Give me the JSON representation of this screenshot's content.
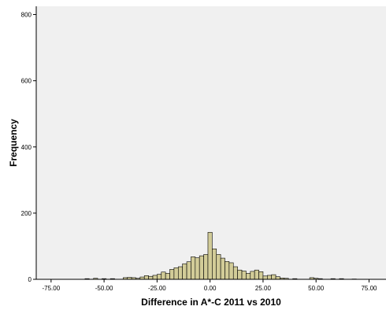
{
  "chart_data": {
    "type": "bar",
    "title": "",
    "xlabel": "Difference in A*-C 2011 vs 2010",
    "ylabel": "Frequency",
    "xlim": [
      -82,
      83
    ],
    "ylim": [
      0,
      825
    ],
    "x_ticks": [
      -75,
      -50,
      -25,
      0,
      25,
      50,
      75
    ],
    "x_tick_labels": [
      "-75.00",
      "-50.00",
      "-25.00",
      "0.00",
      "25.00",
      "50.00",
      "75.00"
    ],
    "y_ticks": [
      0,
      200,
      400,
      600,
      800
    ],
    "y_tick_labels": [
      "0",
      "200",
      "400",
      "600",
      "800"
    ],
    "bin_width": 2,
    "bins": [
      {
        "x": -58,
        "value": 2
      },
      {
        "x": -54,
        "value": 3
      },
      {
        "x": -50,
        "value": 2
      },
      {
        "x": -46,
        "value": 2
      },
      {
        "x": -40,
        "value": 5
      },
      {
        "x": -38,
        "value": 6
      },
      {
        "x": -36,
        "value": 5
      },
      {
        "x": -34,
        "value": 3
      },
      {
        "x": -32,
        "value": 7
      },
      {
        "x": -30,
        "value": 11
      },
      {
        "x": -28,
        "value": 9
      },
      {
        "x": -26,
        "value": 12
      },
      {
        "x": -24,
        "value": 15
      },
      {
        "x": -22,
        "value": 22
      },
      {
        "x": -20,
        "value": 18
      },
      {
        "x": -18,
        "value": 30
      },
      {
        "x": -16,
        "value": 35
      },
      {
        "x": -14,
        "value": 38
      },
      {
        "x": -12,
        "value": 47
      },
      {
        "x": -10,
        "value": 53
      },
      {
        "x": -8,
        "value": 68
      },
      {
        "x": -6,
        "value": 65
      },
      {
        "x": -4,
        "value": 71
      },
      {
        "x": -2,
        "value": 75
      },
      {
        "x": 0,
        "value": 142
      },
      {
        "x": 2,
        "value": 92
      },
      {
        "x": 4,
        "value": 75
      },
      {
        "x": 6,
        "value": 64
      },
      {
        "x": 8,
        "value": 54
      },
      {
        "x": 10,
        "value": 50
      },
      {
        "x": 12,
        "value": 38
      },
      {
        "x": 14,
        "value": 28
      },
      {
        "x": 16,
        "value": 25
      },
      {
        "x": 18,
        "value": 18
      },
      {
        "x": 20,
        "value": 24
      },
      {
        "x": 22,
        "value": 28
      },
      {
        "x": 24,
        "value": 23
      },
      {
        "x": 26,
        "value": 10
      },
      {
        "x": 28,
        "value": 12
      },
      {
        "x": 30,
        "value": 14
      },
      {
        "x": 32,
        "value": 8
      },
      {
        "x": 34,
        "value": 4
      },
      {
        "x": 36,
        "value": 3
      },
      {
        "x": 40,
        "value": 2
      },
      {
        "x": 48,
        "value": 5
      },
      {
        "x": 50,
        "value": 3
      },
      {
        "x": 52,
        "value": 2
      },
      {
        "x": 58,
        "value": 2
      },
      {
        "x": 62,
        "value": 2
      },
      {
        "x": 68,
        "value": 1
      }
    ],
    "grid": false
  },
  "colors": {
    "plot_background": "#f0f0f0",
    "bar_fill": "#d2cc98",
    "bar_stroke": "#000000",
    "axis": "#000000"
  }
}
